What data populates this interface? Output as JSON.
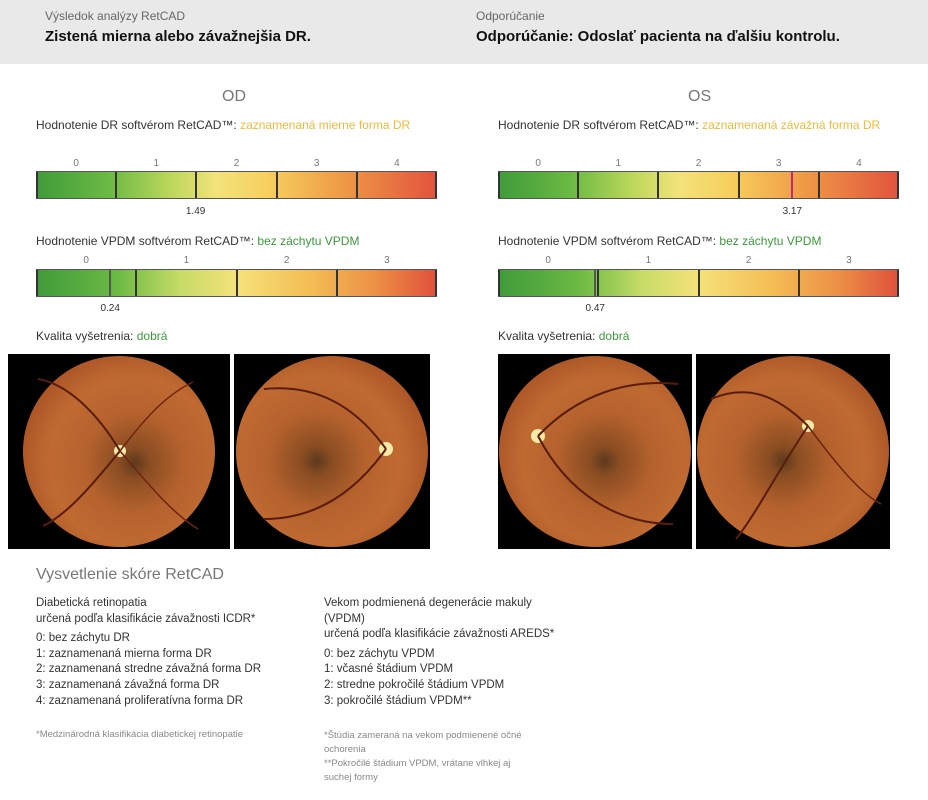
{
  "header": {
    "result_label": "Výsledok analýzy RetCAD",
    "result_value": "Zistená mierna alebo závažnejšia DR.",
    "recommend_label": "Odporúčanie",
    "recommend_value": "Odporúčanie: Odoslať pacienta na ďalšiu kontrolu."
  },
  "od": {
    "title": "OD",
    "dr_label": "Hodnotenie DR softvérom RetCAD™: ",
    "dr_result": "zaznamenaná mierne forma DR",
    "dr_score": 1.49,
    "dr_score_text": "1.49",
    "vpdm_label": "Hodnotenie VPDM softvérom RetCAD™: ",
    "vpdm_result": "bez záchytu VPDM",
    "vpdm_score": 0.24,
    "vpdm_score_text": "0.24",
    "quality_label": "Kvalita vyšetrenia: ",
    "quality_value": "dobrá"
  },
  "os": {
    "title": "OS",
    "dr_label": "Hodnotenie DR softvérom RetCAD™: ",
    "dr_result": "zaznamenaná závažná forma DR",
    "dr_score": 3.17,
    "dr_score_text": "3.17",
    "vpdm_label": "Hodnotenie VPDM softvérom RetCAD™: ",
    "vpdm_result": "bez záchytu VPDM",
    "vpdm_score": 0.47,
    "vpdm_score_text": "0.47",
    "quality_label": "Kvalita vyšetrenia: ",
    "quality_value": "dobrá"
  },
  "dr_ticks": [
    "0",
    "1",
    "2",
    "3",
    "4"
  ],
  "vpdm_ticks": [
    "0",
    "1",
    "2",
    "3"
  ],
  "legend": {
    "title": "Vysvetlenie skóre RetCAD",
    "dr_head_1": "Diabetická retinopatia",
    "dr_head_2": "určená podľa klasifikácie závažnosti ICDR*",
    "dr_items": [
      "0: bez záchytu DR",
      "1: zaznamenaná mierna forma DR",
      "2: zaznamenaná stredne závažná forma DR",
      "3: zaznamenaná závažná forma DR",
      "4: zaznamenaná proliferatívna forma DR"
    ],
    "dr_note": "*Medzinárodná klasifikácia diabetickej retinopatie",
    "vp_head_1": "Vekom podmienená degenerácie makuly",
    "vp_head_2": "(VPDM)",
    "vp_head_3": "určená podľa klasifikácie závažnosti AREDS*",
    "vp_items": [
      "0: bez záchytu VPDM",
      "1: včasné štádium VPDM",
      "2: stredne pokročilé štádium VPDM",
      "3: pokročilé štádium VPDM**"
    ],
    "vp_note_1": "*Štúdia zameraná na vekom podmienené očné",
    "vp_note_2": "ochorenia",
    "vp_note_3": "**Pokročilé štádium VPDM, vrátane vlhkej aj",
    "vp_note_4": "suchej formy"
  }
}
